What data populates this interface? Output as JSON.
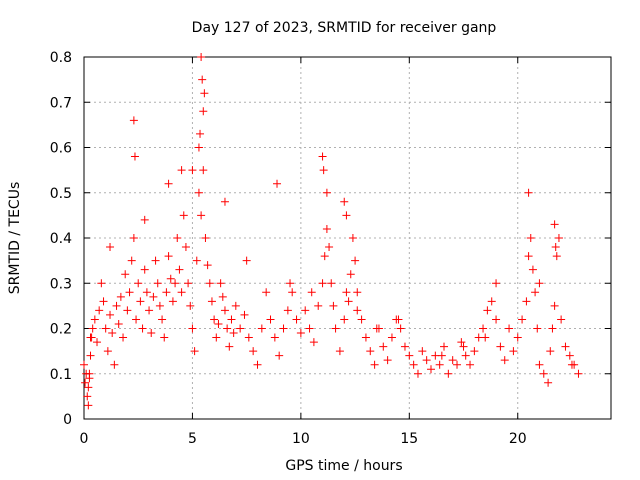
{
  "chart_data": {
    "type": "scatter",
    "title": "Day 127 of 2023, SRMTID for receiver ganp",
    "xlabel": "GPS time / hours",
    "ylabel": "SRMTID / TECUs",
    "xlim": [
      0,
      24.3
    ],
    "ylim": [
      0,
      0.8
    ],
    "x_ticks": [
      0,
      5,
      10,
      15,
      20
    ],
    "y_ticks": [
      0,
      0.1,
      0.2,
      0.3,
      0.4,
      0.5,
      0.6,
      0.7,
      0.8
    ],
    "x_tick_labels": [
      "0",
      "5",
      "10",
      "15",
      "20"
    ],
    "y_tick_labels": [
      "0",
      "0.1",
      "0.2",
      "0.3",
      "0.4",
      "0.5",
      "0.6",
      "0.7",
      "0.8"
    ],
    "grid": true,
    "marker": "+",
    "marker_color": "#ff0000",
    "series": [
      {
        "name": "SRMTID",
        "x": [
          0.0,
          0.05,
          0.1,
          0.15,
          0.2,
          0.25,
          0.3,
          0.35,
          0.4,
          0.5,
          0.6,
          0.7,
          0.8,
          0.9,
          1.0,
          1.1,
          1.2,
          1.3,
          1.4,
          1.5,
          1.6,
          1.7,
          1.8,
          1.9,
          2.0,
          2.1,
          2.2,
          2.3,
          2.4,
          2.5,
          2.6,
          2.7,
          2.8,
          2.9,
          3.0,
          3.1,
          3.2,
          3.3,
          3.4,
          3.5,
          3.6,
          3.7,
          3.8,
          3.9,
          4.0,
          4.1,
          4.2,
          4.3,
          4.4,
          4.5,
          4.6,
          4.7,
          4.8,
          4.9,
          5.0,
          5.1,
          5.2,
          5.3,
          5.4,
          5.5,
          5.6,
          5.7,
          5.8,
          5.9,
          6.0,
          6.1,
          6.2,
          6.3,
          6.4,
          6.5,
          6.6,
          6.7,
          6.8,
          6.9,
          7.0,
          7.2,
          7.4,
          7.6,
          7.8,
          8.0,
          8.2,
          8.4,
          8.6,
          8.8,
          9.0,
          9.2,
          9.4,
          9.6,
          9.8,
          10.0,
          10.2,
          10.4,
          10.6,
          10.8,
          11.0,
          11.1,
          11.2,
          11.3,
          11.4,
          11.5,
          11.6,
          11.8,
          12.0,
          12.1,
          12.2,
          12.3,
          12.4,
          12.5,
          12.6,
          12.8,
          13.0,
          13.2,
          13.4,
          13.6,
          13.8,
          14.0,
          14.2,
          14.4,
          14.6,
          14.8,
          15.0,
          15.2,
          15.4,
          15.6,
          15.8,
          16.0,
          16.2,
          16.4,
          16.6,
          16.8,
          17.0,
          17.2,
          17.4,
          17.6,
          17.8,
          18.0,
          18.2,
          18.4,
          18.6,
          18.8,
          19.0,
          19.2,
          19.4,
          19.6,
          19.8,
          20.0,
          20.2,
          20.4,
          20.5,
          20.6,
          20.7,
          20.8,
          20.9,
          21.0,
          21.2,
          21.4,
          21.5,
          21.6,
          21.7,
          21.8,
          21.9,
          22.0,
          22.2,
          22.4,
          22.6,
          22.8,
          2.3,
          2.35,
          5.4,
          5.45,
          5.5,
          5.55,
          5.35,
          5.3,
          11.0,
          11.05,
          11.2,
          12.0,
          12.1,
          8.9,
          4.5,
          3.9,
          1.2,
          2.8,
          5.0,
          6.5,
          7.5,
          9.5,
          10.5,
          12.6,
          13.5,
          14.5,
          16.5,
          17.5,
          18.5,
          19.0,
          20.5,
          21.0,
          21.7,
          21.75,
          22.5,
          0.3,
          0.25,
          0.2
        ],
        "values": [
          0.12,
          0.08,
          0.1,
          0.05,
          0.03,
          0.09,
          0.14,
          0.18,
          0.2,
          0.22,
          0.17,
          0.24,
          0.3,
          0.26,
          0.2,
          0.15,
          0.23,
          0.19,
          0.12,
          0.25,
          0.21,
          0.27,
          0.18,
          0.32,
          0.24,
          0.28,
          0.35,
          0.4,
          0.22,
          0.3,
          0.26,
          0.2,
          0.33,
          0.28,
          0.24,
          0.19,
          0.27,
          0.35,
          0.3,
          0.25,
          0.22,
          0.18,
          0.28,
          0.36,
          0.31,
          0.26,
          0.3,
          0.4,
          0.33,
          0.28,
          0.45,
          0.38,
          0.3,
          0.25,
          0.2,
          0.15,
          0.35,
          0.5,
          0.45,
          0.55,
          0.4,
          0.34,
          0.3,
          0.26,
          0.22,
          0.18,
          0.21,
          0.3,
          0.27,
          0.24,
          0.2,
          0.16,
          0.22,
          0.19,
          0.25,
          0.2,
          0.23,
          0.18,
          0.15,
          0.12,
          0.2,
          0.28,
          0.22,
          0.18,
          0.14,
          0.2,
          0.24,
          0.28,
          0.22,
          0.19,
          0.24,
          0.2,
          0.17,
          0.25,
          0.3,
          0.36,
          0.42,
          0.38,
          0.3,
          0.25,
          0.2,
          0.15,
          0.22,
          0.28,
          0.26,
          0.32,
          0.4,
          0.35,
          0.28,
          0.22,
          0.18,
          0.15,
          0.12,
          0.2,
          0.16,
          0.13,
          0.18,
          0.22,
          0.2,
          0.16,
          0.14,
          0.12,
          0.1,
          0.15,
          0.13,
          0.11,
          0.14,
          0.12,
          0.16,
          0.1,
          0.13,
          0.12,
          0.17,
          0.14,
          0.12,
          0.15,
          0.18,
          0.2,
          0.24,
          0.26,
          0.22,
          0.16,
          0.13,
          0.2,
          0.15,
          0.18,
          0.22,
          0.26,
          0.36,
          0.4,
          0.33,
          0.28,
          0.2,
          0.12,
          0.1,
          0.08,
          0.15,
          0.2,
          0.25,
          0.36,
          0.4,
          0.22,
          0.16,
          0.14,
          0.12,
          0.1,
          0.66,
          0.58,
          0.8,
          0.75,
          0.68,
          0.72,
          0.63,
          0.6,
          0.58,
          0.55,
          0.5,
          0.48,
          0.45,
          0.52,
          0.55,
          0.52,
          0.38,
          0.44,
          0.55,
          0.48,
          0.35,
          0.3,
          0.28,
          0.24,
          0.2,
          0.22,
          0.14,
          0.16,
          0.18,
          0.3,
          0.5,
          0.3,
          0.43,
          0.38,
          0.12,
          0.18,
          0.1,
          0.07
        ]
      }
    ]
  }
}
